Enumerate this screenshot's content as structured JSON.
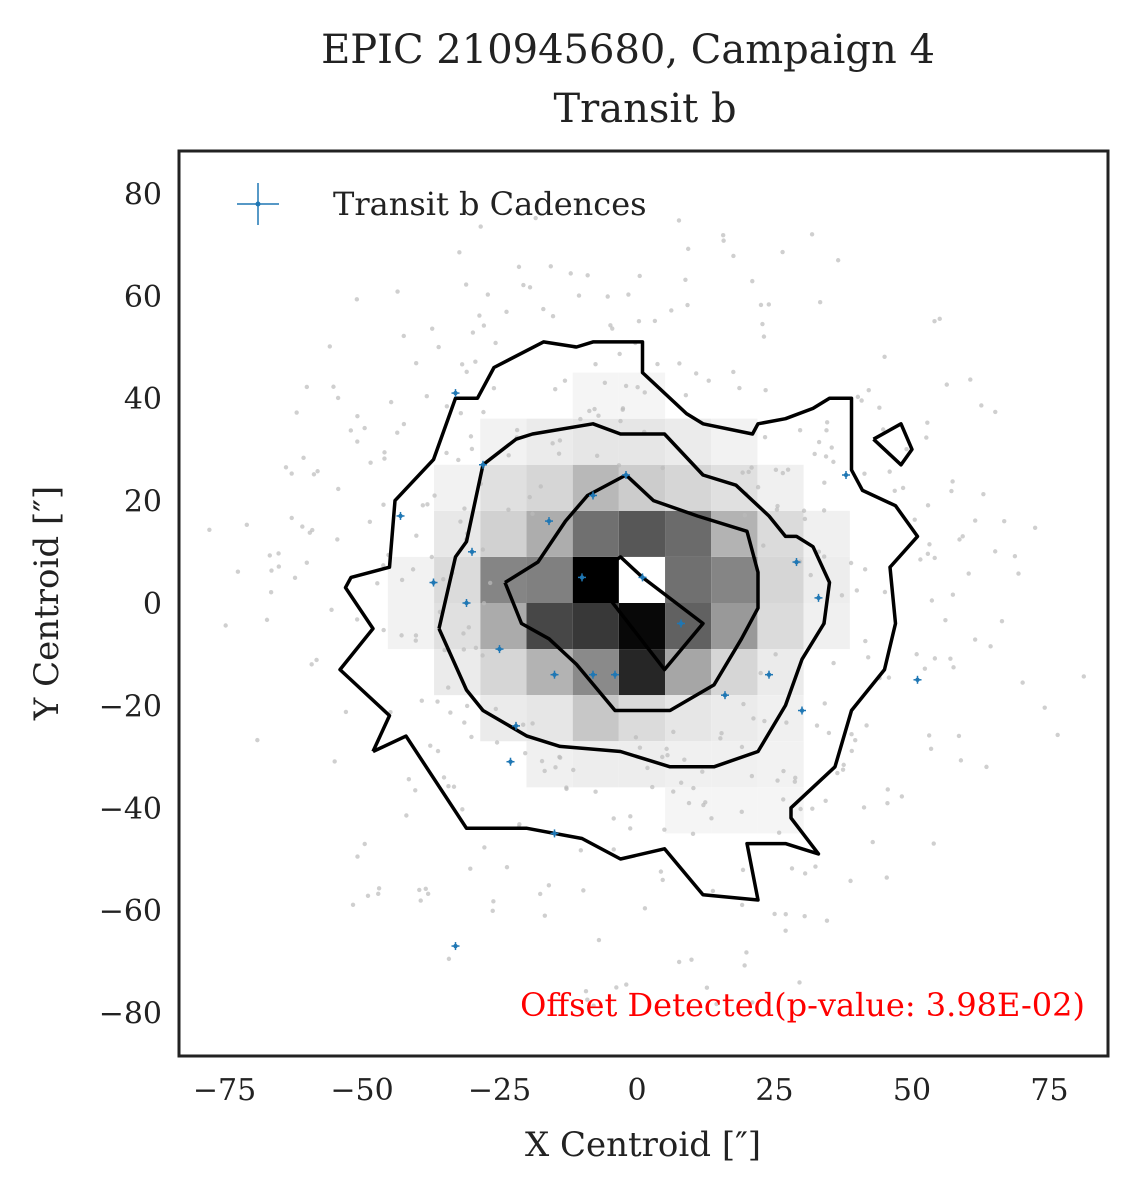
{
  "chart_data": {
    "type": "scatter",
    "title": "EPIC 210945680, Campaign 4",
    "subtitle": "Transit b",
    "xlabel": "X Centroid [″]",
    "ylabel": "Y Centroid [″]",
    "xlim": [
      -85,
      85
    ],
    "ylim": [
      -88,
      88
    ],
    "xticks": [
      -75,
      -50,
      -25,
      0,
      25,
      50,
      75
    ],
    "yticks": [
      -80,
      -60,
      -40,
      -20,
      0,
      20,
      40,
      60,
      80
    ],
    "xtick_labels": [
      "−75",
      "−50",
      "−25",
      "0",
      "25",
      "50",
      "75"
    ],
    "ytick_labels": [
      "−80",
      "−60",
      "−40",
      "−20",
      "0",
      "20",
      "40",
      "60",
      "80"
    ],
    "grid": false,
    "legend": {
      "position": "top-left",
      "entries": [
        "Transit b Cadences"
      ]
    },
    "annotation": {
      "text": "Offset Detected(p-value: 3.98E-02)",
      "color": "#ff0000",
      "position": "bottom-right"
    },
    "colors": {
      "transit_points": "#1f77b4",
      "background_points": "#bbbbbb",
      "contours": "#000000"
    },
    "series": [
      {
        "name": "Transit b Cadences",
        "points": [
          [
            -33,
            41
          ],
          [
            -28,
            27
          ],
          [
            -43,
            17
          ],
          [
            -2,
            25
          ],
          [
            -8,
            21
          ],
          [
            -16,
            16
          ],
          [
            -30,
            10
          ],
          [
            -37,
            4
          ],
          [
            -31,
            0
          ],
          [
            -10,
            5
          ],
          [
            1,
            5
          ],
          [
            8,
            -4
          ],
          [
            -25,
            -9
          ],
          [
            -15,
            -14
          ],
          [
            -8,
            -14
          ],
          [
            -4,
            -14
          ],
          [
            16,
            -18
          ],
          [
            24,
            -14
          ],
          [
            30,
            -21
          ],
          [
            29,
            8
          ],
          [
            33,
            1
          ],
          [
            38,
            25
          ],
          [
            51,
            -15
          ],
          [
            -22,
            -24
          ],
          [
            -23,
            -31
          ],
          [
            -15,
            -45
          ],
          [
            -33,
            -67
          ]
        ]
      }
    ],
    "density_cells": [
      {
        "x": -7.5,
        "y": 4.5,
        "v": 1.0
      },
      {
        "x": 0.9,
        "y": -4.5,
        "v": 0.97
      },
      {
        "x": 0.9,
        "y": -13.5,
        "v": 0.85
      },
      {
        "x": -7.5,
        "y": -4.5,
        "v": 0.78
      },
      {
        "x": 0.9,
        "y": 13.5,
        "v": 0.66
      },
      {
        "x": 9.3,
        "y": 13.5,
        "v": 0.58
      },
      {
        "x": -7.5,
        "y": 13.5,
        "v": 0.56
      },
      {
        "x": 9.3,
        "y": 4.5,
        "v": 0.56
      },
      {
        "x": -15.9,
        "y": -4.5,
        "v": 0.72
      },
      {
        "x": -15.9,
        "y": 4.5,
        "v": 0.5
      },
      {
        "x": 9.3,
        "y": -4.5,
        "v": 0.62
      },
      {
        "x": -24.3,
        "y": 4.5,
        "v": 0.48
      },
      {
        "x": 17.7,
        "y": 4.5,
        "v": 0.48
      },
      {
        "x": 17.7,
        "y": -4.5,
        "v": 0.4
      },
      {
        "x": -24.3,
        "y": -4.5,
        "v": 0.33
      },
      {
        "x": -7.5,
        "y": -13.5,
        "v": 0.46
      },
      {
        "x": -15.9,
        "y": -13.5,
        "v": 0.3
      },
      {
        "x": 9.3,
        "y": -13.5,
        "v": 0.35
      },
      {
        "x": 17.7,
        "y": 13.5,
        "v": 0.3
      },
      {
        "x": -15.9,
        "y": 13.5,
        "v": 0.32
      },
      {
        "x": -24.3,
        "y": 13.5,
        "v": 0.18
      },
      {
        "x": 0.9,
        "y": 22.5,
        "v": 0.2
      },
      {
        "x": -7.5,
        "y": 22.5,
        "v": 0.28
      },
      {
        "x": 9.3,
        "y": 22.5,
        "v": 0.16
      },
      {
        "x": -15.9,
        "y": 22.5,
        "v": 0.16
      },
      {
        "x": 17.7,
        "y": 22.5,
        "v": 0.12
      },
      {
        "x": -24.3,
        "y": 22.5,
        "v": 0.12
      },
      {
        "x": -7.5,
        "y": 31.5,
        "v": 0.1
      },
      {
        "x": 0.9,
        "y": 31.5,
        "v": 0.1
      },
      {
        "x": -15.9,
        "y": 31.5,
        "v": 0.08
      },
      {
        "x": 9.3,
        "y": 31.5,
        "v": 0.08
      },
      {
        "x": 26.1,
        "y": 13.5,
        "v": 0.14
      },
      {
        "x": 26.1,
        "y": 4.5,
        "v": 0.16
      },
      {
        "x": 26.1,
        "y": -4.5,
        "v": 0.14
      },
      {
        "x": 26.1,
        "y": -13.5,
        "v": 0.08
      },
      {
        "x": -32.7,
        "y": 4.5,
        "v": 0.14
      },
      {
        "x": -32.7,
        "y": -4.5,
        "v": 0.12
      },
      {
        "x": -32.7,
        "y": 13.5,
        "v": 0.09
      },
      {
        "x": -24.3,
        "y": -13.5,
        "v": 0.16
      },
      {
        "x": 17.7,
        "y": -13.5,
        "v": 0.16
      },
      {
        "x": -7.5,
        "y": -22.5,
        "v": 0.22
      },
      {
        "x": 0.9,
        "y": -22.5,
        "v": 0.14
      },
      {
        "x": -15.9,
        "y": -22.5,
        "v": 0.1
      },
      {
        "x": 9.3,
        "y": -22.5,
        "v": 0.1
      },
      {
        "x": -24.3,
        "y": -22.5,
        "v": 0.08
      },
      {
        "x": 17.7,
        "y": -22.5,
        "v": 0.08
      },
      {
        "x": 26.1,
        "y": -22.5,
        "v": 0.06
      },
      {
        "x": -32.7,
        "y": -13.5,
        "v": 0.08
      },
      {
        "x": 0.9,
        "y": -31.5,
        "v": 0.07
      },
      {
        "x": -7.5,
        "y": -31.5,
        "v": 0.07
      },
      {
        "x": 9.3,
        "y": -31.5,
        "v": 0.06
      },
      {
        "x": 17.7,
        "y": -31.5,
        "v": 0.06
      },
      {
        "x": -15.9,
        "y": -31.5,
        "v": 0.06
      },
      {
        "x": 26.1,
        "y": -31.5,
        "v": 0.05
      },
      {
        "x": 34.5,
        "y": 4.5,
        "v": 0.07
      },
      {
        "x": 34.5,
        "y": -4.5,
        "v": 0.06
      },
      {
        "x": 34.5,
        "y": 13.5,
        "v": 0.06
      },
      {
        "x": -41.1,
        "y": 4.5,
        "v": 0.05
      },
      {
        "x": -41.1,
        "y": -4.5,
        "v": 0.05
      },
      {
        "x": 26.1,
        "y": 22.5,
        "v": 0.06
      },
      {
        "x": -32.7,
        "y": 22.5,
        "v": 0.05
      },
      {
        "x": 26.1,
        "y": -40.5,
        "v": 0.04
      },
      {
        "x": 17.7,
        "y": -40.5,
        "v": 0.04
      },
      {
        "x": 9.3,
        "y": -40.5,
        "v": 0.04
      },
      {
        "x": -24.3,
        "y": 31.5,
        "v": 0.05
      },
      {
        "x": 17.7,
        "y": 31.5,
        "v": 0.05
      },
      {
        "x": 0.9,
        "y": 40.5,
        "v": 0.04
      },
      {
        "x": -7.5,
        "y": 40.5,
        "v": 0.04
      }
    ],
    "contours": [
      [
        [
          -48,
          -29
        ],
        [
          -42,
          -26
        ],
        [
          -31,
          -44
        ],
        [
          -20,
          -44
        ],
        [
          -10,
          -46
        ],
        [
          -3,
          -50
        ],
        [
          5,
          -48
        ],
        [
          12,
          -57
        ],
        [
          22,
          -58
        ],
        [
          20,
          -47
        ],
        [
          27,
          -47
        ],
        [
          30,
          -48
        ],
        [
          33,
          -49
        ],
        [
          28,
          -42
        ],
        [
          28,
          -40
        ],
        [
          36,
          -32
        ],
        [
          39,
          -21
        ],
        [
          45,
          -13
        ],
        [
          47,
          -4
        ],
        [
          46,
          7
        ],
        [
          51,
          13
        ],
        [
          47,
          19
        ],
        [
          41,
          22
        ],
        [
          39,
          26
        ],
        [
          39,
          40
        ],
        [
          35,
          40
        ],
        [
          32,
          38
        ],
        [
          27,
          36
        ],
        [
          22,
          35
        ],
        [
          21,
          33
        ],
        [
          12,
          35
        ],
        [
          9,
          37
        ],
        [
          1,
          45
        ],
        [
          1,
          51
        ],
        [
          -8,
          51
        ],
        [
          -11,
          50
        ],
        [
          -17,
          51
        ],
        [
          -26,
          46
        ],
        [
          -29,
          40
        ],
        [
          -33,
          40
        ],
        [
          -37,
          28
        ],
        [
          -44,
          20
        ],
        [
          -45,
          7
        ],
        [
          -52,
          5
        ],
        [
          -53,
          3
        ],
        [
          -48,
          -5
        ],
        [
          -54,
          -13
        ],
        [
          -45,
          -22
        ],
        [
          -48,
          -29
        ]
      ],
      [
        [
          -36,
          -5
        ],
        [
          -31,
          -17
        ],
        [
          -28,
          -21
        ],
        [
          -20,
          -26
        ],
        [
          -14,
          -28
        ],
        [
          -3,
          -29
        ],
        [
          6,
          -32
        ],
        [
          14,
          -32
        ],
        [
          22,
          -29
        ],
        [
          27,
          -20
        ],
        [
          30,
          -11
        ],
        [
          34,
          -4
        ],
        [
          35,
          4
        ],
        [
          32,
          11
        ],
        [
          29,
          13
        ],
        [
          27,
          13
        ],
        [
          24,
          17
        ],
        [
          18,
          23
        ],
        [
          12,
          25
        ],
        [
          5,
          33
        ],
        [
          -3,
          33
        ],
        [
          -8,
          35
        ],
        [
          -19,
          33
        ],
        [
          -22,
          32
        ],
        [
          -28,
          27
        ],
        [
          -31,
          12
        ],
        [
          -33,
          9
        ],
        [
          -36,
          -5
        ]
      ],
      [
        [
          -24,
          4
        ],
        [
          -21,
          -4
        ],
        [
          -16,
          -7
        ],
        [
          -11,
          -12
        ],
        [
          -4,
          -21
        ],
        [
          6,
          -21
        ],
        [
          14,
          -16
        ],
        [
          19,
          -7
        ],
        [
          22,
          -1
        ],
        [
          22,
          6
        ],
        [
          20,
          14
        ],
        [
          11,
          17
        ],
        [
          3,
          20
        ],
        [
          -2,
          25
        ],
        [
          -9,
          21
        ],
        [
          -13,
          16
        ],
        [
          -18,
          8
        ],
        [
          -24,
          4
        ]
      ],
      [
        [
          -8,
          5
        ],
        [
          -3,
          9
        ],
        [
          1,
          5
        ],
        [
          12,
          -4
        ],
        [
          5,
          -13
        ],
        [
          -8,
          5
        ]
      ],
      [
        [
          43,
          32
        ],
        [
          48,
          35
        ],
        [
          50,
          30
        ],
        [
          48,
          27
        ],
        [
          43,
          32
        ]
      ]
    ]
  }
}
